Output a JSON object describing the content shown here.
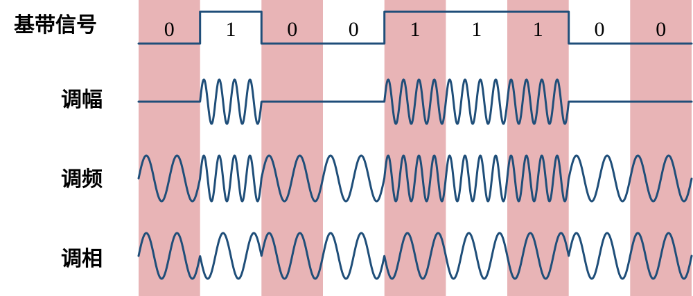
{
  "labels": {
    "baseband": "基带信号",
    "am": "调幅",
    "fm": "调频",
    "pm": "调相"
  },
  "bits": [
    "0",
    "1",
    "0",
    "0",
    "1",
    "1",
    "1",
    "0",
    "0"
  ],
  "colors": {
    "band": "#e8b4b6",
    "signal": "#1f4e79",
    "text": "#000000",
    "background": "#ffffff"
  },
  "icons": []
}
